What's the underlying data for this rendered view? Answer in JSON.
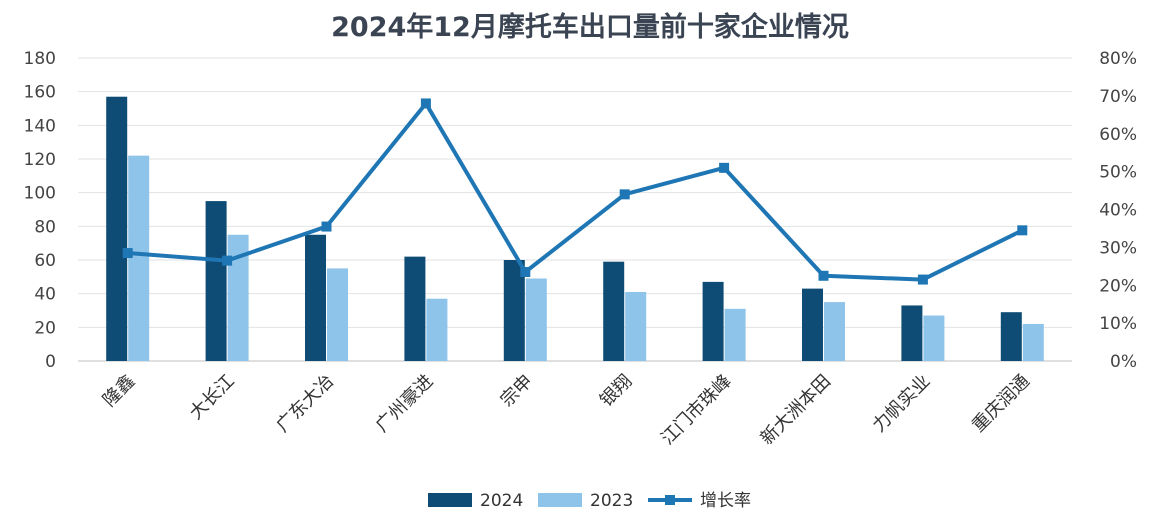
{
  "chart_data": {
    "type": "bar+line",
    "title": "2024年12月摩托车出口量前十家企业情况",
    "categories": [
      "隆鑫",
      "大长江",
      "广东大冶",
      "广州豪进",
      "宗申",
      "银翔",
      "江门市珠峰",
      "新大洲本田",
      "力帆实业",
      "重庆润通"
    ],
    "series": [
      {
        "name": "2024",
        "type": "bar",
        "axis": "left",
        "color": "#0f4c75",
        "values": [
          157,
          95,
          75,
          62,
          60,
          59,
          47,
          43,
          33,
          29
        ]
      },
      {
        "name": "2023",
        "type": "bar",
        "axis": "left",
        "color": "#8ec4ea",
        "values": [
          122,
          75,
          55,
          37,
          49,
          41,
          31,
          35,
          27,
          22
        ]
      },
      {
        "name": "增长率",
        "type": "line",
        "axis": "right",
        "color": "#1f76b4",
        "values": [
          0.285,
          0.265,
          0.355,
          0.68,
          0.235,
          0.44,
          0.51,
          0.225,
          0.215,
          0.345
        ]
      }
    ],
    "y_left": {
      "min": 0,
      "max": 180,
      "step": 20,
      "tick_labels": [
        "0",
        "20",
        "40",
        "60",
        "80",
        "100",
        "120",
        "140",
        "160",
        "180"
      ]
    },
    "y_right": {
      "min": 0,
      "max": 0.8,
      "step": 0.1,
      "tick_labels": [
        "0%",
        "10%",
        "20%",
        "30%",
        "40%",
        "50%",
        "60%",
        "70%",
        "80%"
      ]
    },
    "grid": true,
    "legend": {
      "position": "bottom",
      "labels": [
        "2024",
        "2023",
        "增长率"
      ]
    }
  }
}
